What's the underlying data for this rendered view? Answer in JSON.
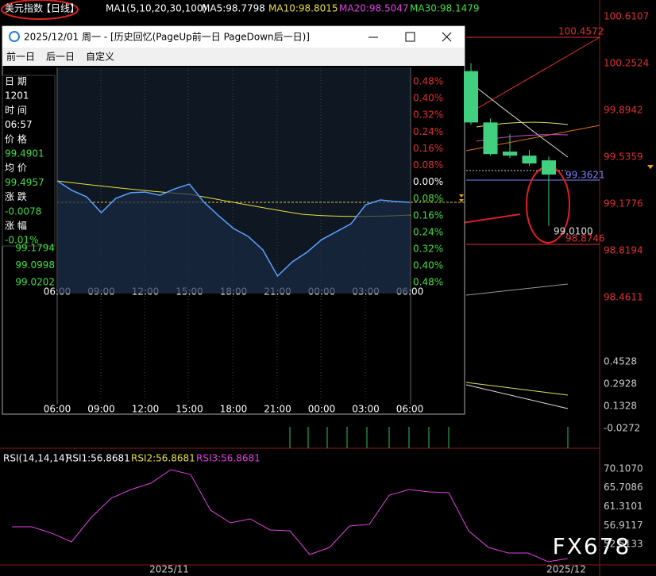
{
  "main_header": {
    "symbol": "美元指数",
    "period": "【日线】",
    "ma_label": "MA1(5,10,20,30,100)",
    "ma5": "MA5:98.7798",
    "ma10": "MA10:98.8015",
    "ma20": "MA20:98.5047",
    "ma30": "MA30:98.1479"
  },
  "price_axis": [
    100.6107,
    100.2524,
    99.8942,
    99.5359,
    99.1776,
    98.8194,
    98.4611
  ],
  "price_labels": [
    "100.4572",
    "99.3621",
    "99.0100",
    "98.8746"
  ],
  "candles": [
    {
      "open": 100.194,
      "high": 100.254,
      "low": 99.783,
      "close": 99.801
    },
    {
      "open": 99.801,
      "high": 99.831,
      "low": 99.547,
      "close": 99.559
    },
    {
      "open": 99.578,
      "high": 99.711,
      "low": 99.529,
      "close": 99.547
    },
    {
      "open": 99.547,
      "high": 99.59,
      "low": 99.469,
      "close": 99.487
    },
    {
      "open": 99.511,
      "high": 99.541,
      "low": 99.01,
      "close": 99.402
    }
  ],
  "macd_axis": [
    "0.4528",
    "0.2928",
    "0.1328",
    "-0.0272"
  ],
  "rsi_header": {
    "label": "RSI(14,14,14)",
    "rsi1": "RSI1:56.8681",
    "rsi2": "RSI2:56.8681",
    "rsi3": "RSI3:56.8681"
  },
  "rsi_axis": [
    {
      "value": 70.107,
      "label": "70.1070"
    },
    65.7086,
    61.3101,
    56.9117,
    52.5133
  ],
  "rsi_values": [
    56.59,
    56.59,
    55.11,
    53.07,
    58.81,
    63.26,
    65.29,
    66.77,
    69.92,
    68.81,
    60.48,
    57.51,
    58.44,
    55.85,
    55.66,
    50.11,
    51.77,
    56.77,
    57.14,
    63.96,
    65.29,
    64.74,
    64.55,
    55.66,
    51.77,
    50.47,
    50.47,
    48.44,
    49.18
  ],
  "date_axis": [
    "2025/11",
    "2025/12"
  ],
  "watermark": "FX678",
  "popup": {
    "title": "2025/12/01 周一 - [历史回忆(PageUp前一日 PageDown后一日)]",
    "menu": [
      "前一日",
      "后一日",
      "自定义"
    ],
    "info": [
      "日 期",
      "1201",
      "时 间",
      "06:57",
      "价 格",
      "99.4901",
      "均 价",
      "99.4957",
      "涨 跌",
      "-0.0078",
      "涨 幅",
      "-0.01%"
    ],
    "left_axis": [
      99.1794,
      99.0998,
      99.0202
    ],
    "right_axis": [
      "0.48%",
      "0.40%",
      "0.32%",
      "0.24%",
      "0.16%",
      "0.08%",
      "0.00%",
      "0.08%",
      "0.16%",
      "0.24%",
      "0.32%",
      "0.40%",
      "0.48%"
    ],
    "time_axis": [
      "06:00",
      "09:00",
      "12:00",
      "15:00",
      "18:00",
      "21:00",
      "00:00",
      "03:00",
      "06:00"
    ],
    "price_values": [
      99.494,
      99.45,
      99.42,
      99.346,
      99.413,
      99.439,
      99.442,
      99.427,
      99.457,
      99.479,
      99.394,
      99.331,
      99.272,
      99.235,
      99.172,
      99.05,
      99.116,
      99.161,
      99.22,
      99.257,
      99.294,
      99.383,
      99.405,
      99.398,
      99.394
    ]
  }
}
